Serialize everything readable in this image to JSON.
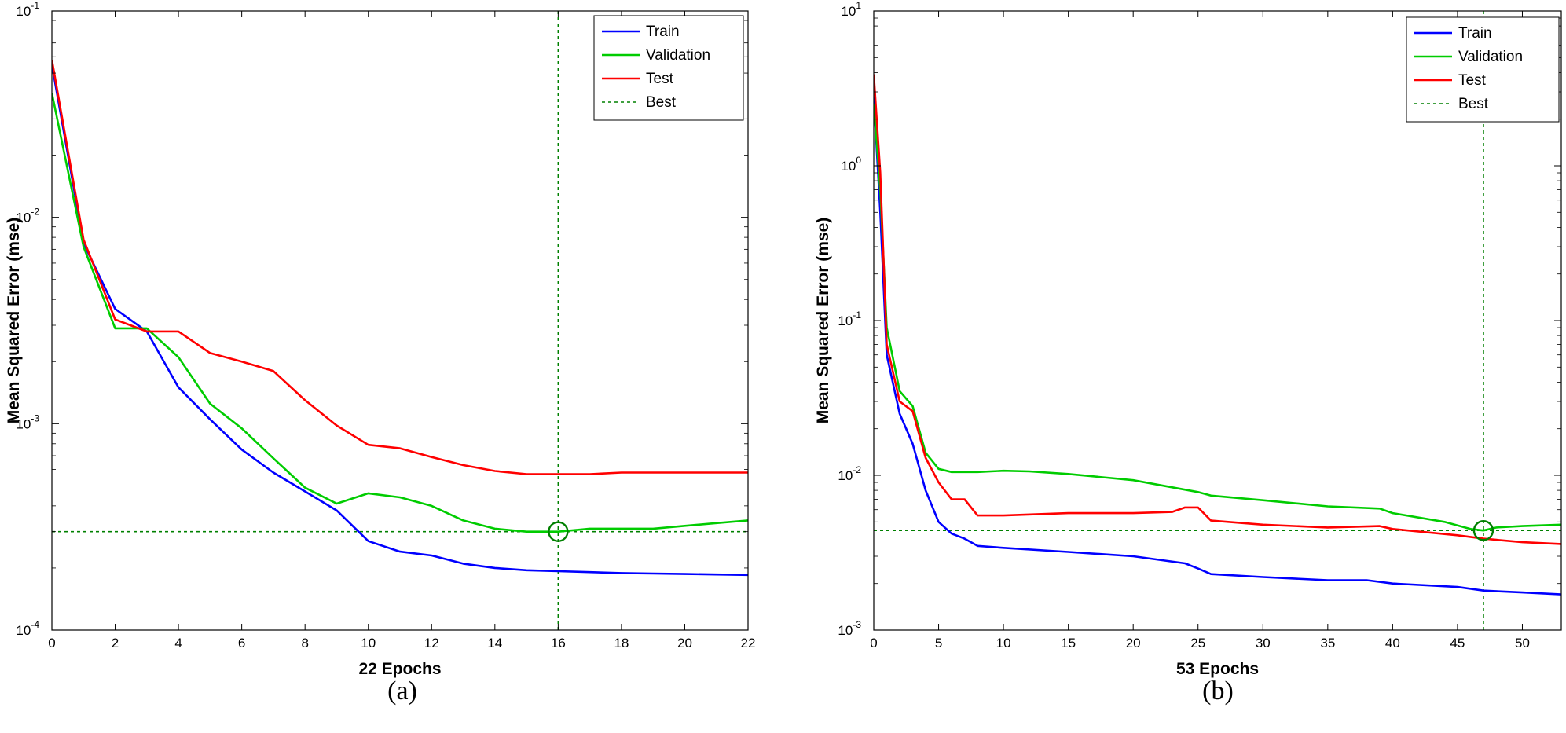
{
  "chart_data": [
    {
      "type": "line",
      "caption": "(a)",
      "xlabel": "22 Epochs",
      "ylabel": "Mean Squared Error  (mse)",
      "xlim": [
        0,
        22
      ],
      "ylim": [
        0.0001,
        0.1
      ],
      "yscale": "log",
      "grid": false,
      "legend_position": "top-right",
      "x_ticks": [
        "0",
        "2",
        "4",
        "6",
        "8",
        "10",
        "12",
        "14",
        "16",
        "18",
        "20",
        "22"
      ],
      "y_ticks": [
        {
          "base": "10",
          "exp": "-4",
          "value": 0.0001
        },
        {
          "base": "10",
          "exp": "-3",
          "value": 0.001
        },
        {
          "base": "10",
          "exp": "-2",
          "value": 0.01
        },
        {
          "base": "10",
          "exp": "-1",
          "value": 0.1
        }
      ],
      "best": {
        "label": "Best",
        "epoch": 16,
        "value": 0.0003,
        "color": "#008000"
      },
      "series": [
        {
          "name": "Train",
          "color": "#0000ff",
          "x": [
            0,
            1,
            2,
            3,
            4,
            5,
            6,
            7,
            8,
            9,
            10,
            11,
            12,
            13,
            14,
            15,
            16,
            17,
            18,
            19,
            20,
            21,
            22
          ],
          "y": [
            0.055,
            0.0075,
            0.0036,
            0.0028,
            0.0015,
            0.00105,
            0.00075,
            0.00058,
            0.00047,
            0.00038,
            0.00027,
            0.00024,
            0.00023,
            0.00021,
            0.0002,
            0.000195,
            0.000193,
            0.000191,
            0.000189,
            0.000188,
            0.000187,
            0.000186,
            0.000185
          ]
        },
        {
          "name": "Validation",
          "color": "#00cc00",
          "x": [
            0,
            1,
            2,
            3,
            4,
            5,
            6,
            7,
            8,
            9,
            10,
            11,
            12,
            13,
            14,
            15,
            16,
            17,
            18,
            19,
            20,
            21,
            22
          ],
          "y": [
            0.04,
            0.0072,
            0.0029,
            0.0029,
            0.0021,
            0.00125,
            0.00095,
            0.00068,
            0.00049,
            0.00041,
            0.00046,
            0.00044,
            0.0004,
            0.00034,
            0.00031,
            0.0003,
            0.0003,
            0.00031,
            0.00031,
            0.00031,
            0.00032,
            0.00033,
            0.00034
          ]
        },
        {
          "name": "Test",
          "color": "#ff0000",
          "x": [
            0,
            1,
            2,
            3,
            4,
            5,
            6,
            7,
            8,
            9,
            10,
            11,
            12,
            13,
            14,
            15,
            16,
            17,
            18,
            19,
            20,
            21,
            22
          ],
          "y": [
            0.058,
            0.0078,
            0.0032,
            0.0028,
            0.0028,
            0.0022,
            0.002,
            0.0018,
            0.0013,
            0.00098,
            0.00079,
            0.00076,
            0.00069,
            0.00063,
            0.00059,
            0.00057,
            0.00057,
            0.00057,
            0.00058,
            0.00058,
            0.00058,
            0.00058,
            0.00058
          ]
        }
      ]
    },
    {
      "type": "line",
      "caption": "(b)",
      "xlabel": "53 Epochs",
      "ylabel": "Mean Squared Error  (mse)",
      "xlim": [
        0,
        53
      ],
      "ylim": [
        0.001,
        10
      ],
      "yscale": "log",
      "grid": false,
      "legend_position": "top-right",
      "x_ticks": [
        "0",
        "5",
        "10",
        "15",
        "20",
        "25",
        "30",
        "35",
        "40",
        "45",
        "50"
      ],
      "y_ticks": [
        {
          "base": "10",
          "exp": "-3",
          "value": 0.001
        },
        {
          "base": "10",
          "exp": "-2",
          "value": 0.01
        },
        {
          "base": "10",
          "exp": "-1",
          "value": 0.1
        },
        {
          "base": "10",
          "exp": "0",
          "value": 1
        },
        {
          "base": "10",
          "exp": "1",
          "value": 10
        }
      ],
      "best": {
        "label": "Best",
        "epoch": 47,
        "value": 0.0044,
        "color": "#008000"
      },
      "series": [
        {
          "name": "Train",
          "color": "#0000ff",
          "x": [
            0,
            0.5,
            1,
            2,
            3,
            4,
            5,
            6,
            7,
            8,
            10,
            15,
            20,
            24,
            25,
            26,
            30,
            35,
            38,
            40,
            45,
            47,
            50,
            53
          ],
          "y": [
            2.8,
            0.5,
            0.06,
            0.025,
            0.016,
            0.008,
            0.005,
            0.0042,
            0.0039,
            0.0035,
            0.0034,
            0.0032,
            0.003,
            0.0027,
            0.0025,
            0.0023,
            0.0022,
            0.0021,
            0.0021,
            0.002,
            0.0019,
            0.0018,
            0.00175,
            0.0017
          ]
        },
        {
          "name": "Validation",
          "color": "#00cc00",
          "x": [
            0,
            0.5,
            1,
            2,
            3,
            4,
            5,
            6,
            8,
            10,
            12,
            15,
            20,
            25,
            26,
            30,
            35,
            39,
            40,
            44,
            46,
            47,
            48,
            50,
            53
          ],
          "y": [
            2.5,
            0.7,
            0.09,
            0.035,
            0.028,
            0.014,
            0.011,
            0.0105,
            0.0105,
            0.0107,
            0.0106,
            0.0102,
            0.0093,
            0.0078,
            0.0074,
            0.0069,
            0.0063,
            0.0061,
            0.0057,
            0.005,
            0.0045,
            0.0044,
            0.0046,
            0.0047,
            0.0048
          ]
        },
        {
          "name": "Test",
          "color": "#ff0000",
          "x": [
            0,
            0.5,
            1,
            2,
            3,
            4,
            5,
            6,
            7,
            8,
            10,
            15,
            20,
            23,
            24,
            25,
            26,
            30,
            35,
            39,
            40,
            45,
            47,
            50,
            53
          ],
          "y": [
            3.9,
            0.9,
            0.07,
            0.03,
            0.026,
            0.013,
            0.009,
            0.007,
            0.007,
            0.0055,
            0.0055,
            0.0057,
            0.0057,
            0.0058,
            0.0062,
            0.0062,
            0.0051,
            0.0048,
            0.0046,
            0.0047,
            0.0045,
            0.0041,
            0.0039,
            0.0037,
            0.0036
          ]
        }
      ]
    }
  ]
}
